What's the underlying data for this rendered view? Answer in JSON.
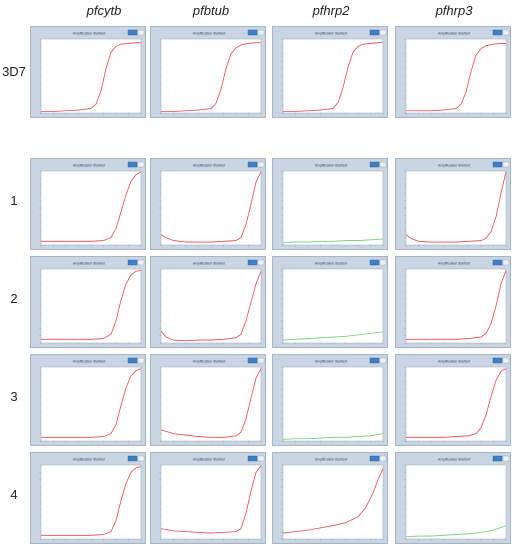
{
  "column_headers": [
    "pfcytb",
    "pfbtub",
    "pfhrp2",
    "pfhrp3"
  ],
  "row_labels": [
    "3D7",
    "1",
    "2",
    "3",
    "4"
  ],
  "panel_title": "Amplification Starttert",
  "colors": {
    "frame": "#c9d5e3",
    "plot_bg": "#ffffff",
    "red_curve": "#e8474f",
    "green_curve": "#6fcf6f",
    "button": "#3f7fc6"
  },
  "chart_data": [
    {
      "type": "line",
      "row": "3D7",
      "column": "pfcytb",
      "xlim": [
        0,
        40
      ],
      "ylim": [
        0,
        1
      ],
      "series": [
        {
          "color": "red",
          "x": [
            0,
            5,
            10,
            15,
            20,
            22,
            24,
            26,
            28,
            30,
            32,
            35,
            38,
            40
          ],
          "y": [
            0.02,
            0.02,
            0.03,
            0.04,
            0.06,
            0.12,
            0.3,
            0.6,
            0.82,
            0.9,
            0.93,
            0.94,
            0.95,
            0.95
          ]
        }
      ]
    },
    {
      "type": "line",
      "row": "3D7",
      "column": "pfbtub",
      "xlim": [
        0,
        40
      ],
      "ylim": [
        0,
        1
      ],
      "series": [
        {
          "color": "red",
          "x": [
            0,
            5,
            10,
            15,
            20,
            22,
            24,
            26,
            28,
            30,
            32,
            35,
            38,
            40
          ],
          "y": [
            0.02,
            0.02,
            0.03,
            0.04,
            0.06,
            0.13,
            0.32,
            0.6,
            0.8,
            0.88,
            0.92,
            0.94,
            0.95,
            0.95
          ]
        }
      ]
    },
    {
      "type": "line",
      "row": "3D7",
      "column": "pfhrp2",
      "xlim": [
        0,
        40
      ],
      "ylim": [
        0,
        1
      ],
      "series": [
        {
          "color": "red",
          "x": [
            0,
            5,
            10,
            15,
            20,
            22,
            24,
            26,
            28,
            30,
            32,
            35,
            38,
            40
          ],
          "y": [
            0.02,
            0.02,
            0.03,
            0.04,
            0.06,
            0.14,
            0.34,
            0.62,
            0.82,
            0.9,
            0.93,
            0.94,
            0.95,
            0.96
          ]
        }
      ]
    },
    {
      "type": "line",
      "row": "3D7",
      "column": "pfhrp3",
      "xlim": [
        0,
        40
      ],
      "ylim": [
        0,
        1
      ],
      "series": [
        {
          "color": "red",
          "x": [
            0,
            5,
            10,
            15,
            20,
            22,
            24,
            26,
            28,
            30,
            32,
            35,
            38,
            40
          ],
          "y": [
            0.03,
            0.03,
            0.03,
            0.04,
            0.06,
            0.12,
            0.28,
            0.56,
            0.78,
            0.87,
            0.91,
            0.93,
            0.94,
            0.94
          ]
        }
      ]
    },
    {
      "type": "line",
      "row": "1",
      "column": "pfcytb",
      "xlim": [
        0,
        40
      ],
      "ylim": [
        0,
        1
      ],
      "series": [
        {
          "color": "red",
          "x": [
            0,
            5,
            10,
            15,
            20,
            25,
            28,
            30,
            32,
            34,
            36,
            38,
            40
          ],
          "y": [
            0.05,
            0.05,
            0.05,
            0.05,
            0.05,
            0.06,
            0.1,
            0.22,
            0.45,
            0.68,
            0.86,
            0.95,
            0.99
          ]
        }
      ]
    },
    {
      "type": "line",
      "row": "1",
      "column": "pfbtub",
      "xlim": [
        0,
        40
      ],
      "ylim": [
        0,
        1
      ],
      "series": [
        {
          "color": "red",
          "x": [
            0,
            2,
            5,
            10,
            15,
            20,
            25,
            30,
            32,
            34,
            36,
            38,
            40
          ],
          "y": [
            0.14,
            0.1,
            0.06,
            0.04,
            0.04,
            0.04,
            0.05,
            0.06,
            0.1,
            0.28,
            0.55,
            0.85,
            0.99
          ]
        }
      ]
    },
    {
      "type": "line",
      "row": "1",
      "column": "pfhrp2",
      "xlim": [
        0,
        40
      ],
      "ylim": [
        0,
        1
      ],
      "series": [
        {
          "color": "green",
          "x": [
            0,
            5,
            10,
            15,
            20,
            25,
            30,
            35,
            40
          ],
          "y": [
            0.03,
            0.04,
            0.04,
            0.05,
            0.05,
            0.06,
            0.06,
            0.07,
            0.08
          ]
        }
      ]
    },
    {
      "type": "line",
      "row": "1",
      "column": "pfhrp3",
      "xlim": [
        0,
        40
      ],
      "ylim": [
        0,
        1
      ],
      "series": [
        {
          "color": "red",
          "x": [
            0,
            2,
            5,
            10,
            15,
            20,
            25,
            30,
            32,
            34,
            36,
            38,
            40
          ],
          "y": [
            0.14,
            0.09,
            0.05,
            0.04,
            0.04,
            0.04,
            0.05,
            0.06,
            0.09,
            0.18,
            0.38,
            0.7,
            0.99
          ]
        }
      ]
    },
    {
      "type": "line",
      "row": "2",
      "column": "pfcytb",
      "xlim": [
        0,
        40
      ],
      "ylim": [
        0,
        1
      ],
      "series": [
        {
          "color": "red",
          "x": [
            0,
            5,
            10,
            15,
            20,
            25,
            28,
            30,
            32,
            34,
            36,
            38,
            40
          ],
          "y": [
            0.05,
            0.05,
            0.05,
            0.05,
            0.05,
            0.06,
            0.12,
            0.3,
            0.58,
            0.8,
            0.92,
            0.97,
            0.98
          ]
        }
      ]
    },
    {
      "type": "line",
      "row": "2",
      "column": "pfbtub",
      "xlim": [
        0,
        40
      ],
      "ylim": [
        0,
        1
      ],
      "series": [
        {
          "color": "red",
          "x": [
            0,
            2,
            5,
            10,
            15,
            20,
            25,
            30,
            32,
            34,
            36,
            38,
            40
          ],
          "y": [
            0.16,
            0.08,
            0.04,
            0.03,
            0.04,
            0.04,
            0.05,
            0.07,
            0.12,
            0.3,
            0.55,
            0.8,
            0.97
          ]
        }
      ]
    },
    {
      "type": "line",
      "row": "2",
      "column": "pfhrp2",
      "xlim": [
        0,
        40
      ],
      "ylim": [
        0,
        1
      ],
      "series": [
        {
          "color": "green",
          "x": [
            0,
            5,
            10,
            15,
            20,
            25,
            30,
            35,
            40
          ],
          "y": [
            0.04,
            0.05,
            0.06,
            0.07,
            0.08,
            0.09,
            0.11,
            0.13,
            0.15
          ]
        }
      ]
    },
    {
      "type": "line",
      "row": "2",
      "column": "pfhrp3",
      "xlim": [
        0,
        40
      ],
      "ylim": [
        0,
        1
      ],
      "series": [
        {
          "color": "red",
          "x": [
            0,
            5,
            10,
            15,
            20,
            25,
            30,
            32,
            34,
            36,
            38,
            40
          ],
          "y": [
            0.05,
            0.05,
            0.05,
            0.05,
            0.05,
            0.06,
            0.08,
            0.13,
            0.26,
            0.5,
            0.8,
            0.98
          ]
        }
      ]
    },
    {
      "type": "line",
      "row": "3",
      "column": "pfcytb",
      "xlim": [
        0,
        40
      ],
      "ylim": [
        0,
        1
      ],
      "series": [
        {
          "color": "red",
          "x": [
            0,
            5,
            10,
            15,
            20,
            25,
            28,
            30,
            32,
            34,
            36,
            38,
            40
          ],
          "y": [
            0.05,
            0.05,
            0.05,
            0.05,
            0.05,
            0.06,
            0.1,
            0.22,
            0.48,
            0.72,
            0.88,
            0.95,
            0.98
          ]
        }
      ]
    },
    {
      "type": "line",
      "row": "3",
      "column": "pfbtub",
      "xlim": [
        0,
        40
      ],
      "ylim": [
        0,
        1
      ],
      "series": [
        {
          "color": "red",
          "x": [
            0,
            5,
            10,
            15,
            20,
            25,
            30,
            32,
            34,
            36,
            38,
            40
          ],
          "y": [
            0.15,
            0.1,
            0.08,
            0.06,
            0.05,
            0.05,
            0.07,
            0.12,
            0.3,
            0.58,
            0.85,
            0.98
          ]
        }
      ]
    },
    {
      "type": "line",
      "row": "3",
      "column": "pfhrp2",
      "xlim": [
        0,
        40
      ],
      "ylim": [
        0,
        1
      ],
      "series": [
        {
          "color": "green",
          "x": [
            0,
            5,
            10,
            15,
            20,
            25,
            30,
            35,
            40
          ],
          "y": [
            0.02,
            0.03,
            0.03,
            0.04,
            0.05,
            0.05,
            0.06,
            0.07,
            0.1
          ]
        }
      ]
    },
    {
      "type": "line",
      "row": "3",
      "column": "pfhrp3",
      "xlim": [
        0,
        40
      ],
      "ylim": [
        0,
        1
      ],
      "series": [
        {
          "color": "red",
          "x": [
            0,
            5,
            10,
            15,
            20,
            25,
            28,
            30,
            32,
            34,
            36,
            38,
            40
          ],
          "y": [
            0.05,
            0.05,
            0.05,
            0.05,
            0.06,
            0.07,
            0.1,
            0.18,
            0.35,
            0.6,
            0.82,
            0.94,
            0.98
          ]
        }
      ]
    },
    {
      "type": "line",
      "row": "4",
      "column": "pfcytb",
      "xlim": [
        0,
        40
      ],
      "ylim": [
        0,
        1
      ],
      "series": [
        {
          "color": "red",
          "x": [
            0,
            5,
            10,
            15,
            20,
            25,
            28,
            30,
            32,
            34,
            36,
            38,
            40
          ],
          "y": [
            0.05,
            0.05,
            0.05,
            0.05,
            0.05,
            0.06,
            0.1,
            0.25,
            0.52,
            0.75,
            0.9,
            0.96,
            0.98
          ]
        }
      ]
    },
    {
      "type": "line",
      "row": "4",
      "column": "pfbtub",
      "xlim": [
        0,
        40
      ],
      "ylim": [
        0,
        1
      ],
      "series": [
        {
          "color": "red",
          "x": [
            0,
            5,
            10,
            15,
            20,
            25,
            30,
            32,
            34,
            36,
            38,
            40
          ],
          "y": [
            0.14,
            0.11,
            0.1,
            0.09,
            0.08,
            0.09,
            0.1,
            0.14,
            0.35,
            0.65,
            0.9,
            0.99
          ]
        }
      ]
    },
    {
      "type": "line",
      "row": "4",
      "column": "pfhrp2",
      "xlim": [
        0,
        40
      ],
      "ylim": [
        0,
        1
      ],
      "series": [
        {
          "color": "red",
          "x": [
            0,
            5,
            10,
            15,
            20,
            25,
            30,
            33,
            36,
            38,
            40
          ],
          "y": [
            0.08,
            0.1,
            0.12,
            0.15,
            0.18,
            0.22,
            0.3,
            0.42,
            0.62,
            0.8,
            0.95
          ]
        }
      ]
    },
    {
      "type": "line",
      "row": "4",
      "column": "pfhrp3",
      "xlim": [
        0,
        40
      ],
      "ylim": [
        0,
        1
      ],
      "series": [
        {
          "color": "green",
          "x": [
            0,
            5,
            10,
            15,
            20,
            25,
            30,
            35,
            40
          ],
          "y": [
            0.03,
            0.04,
            0.04,
            0.05,
            0.06,
            0.07,
            0.09,
            0.12,
            0.18
          ]
        }
      ]
    }
  ]
}
